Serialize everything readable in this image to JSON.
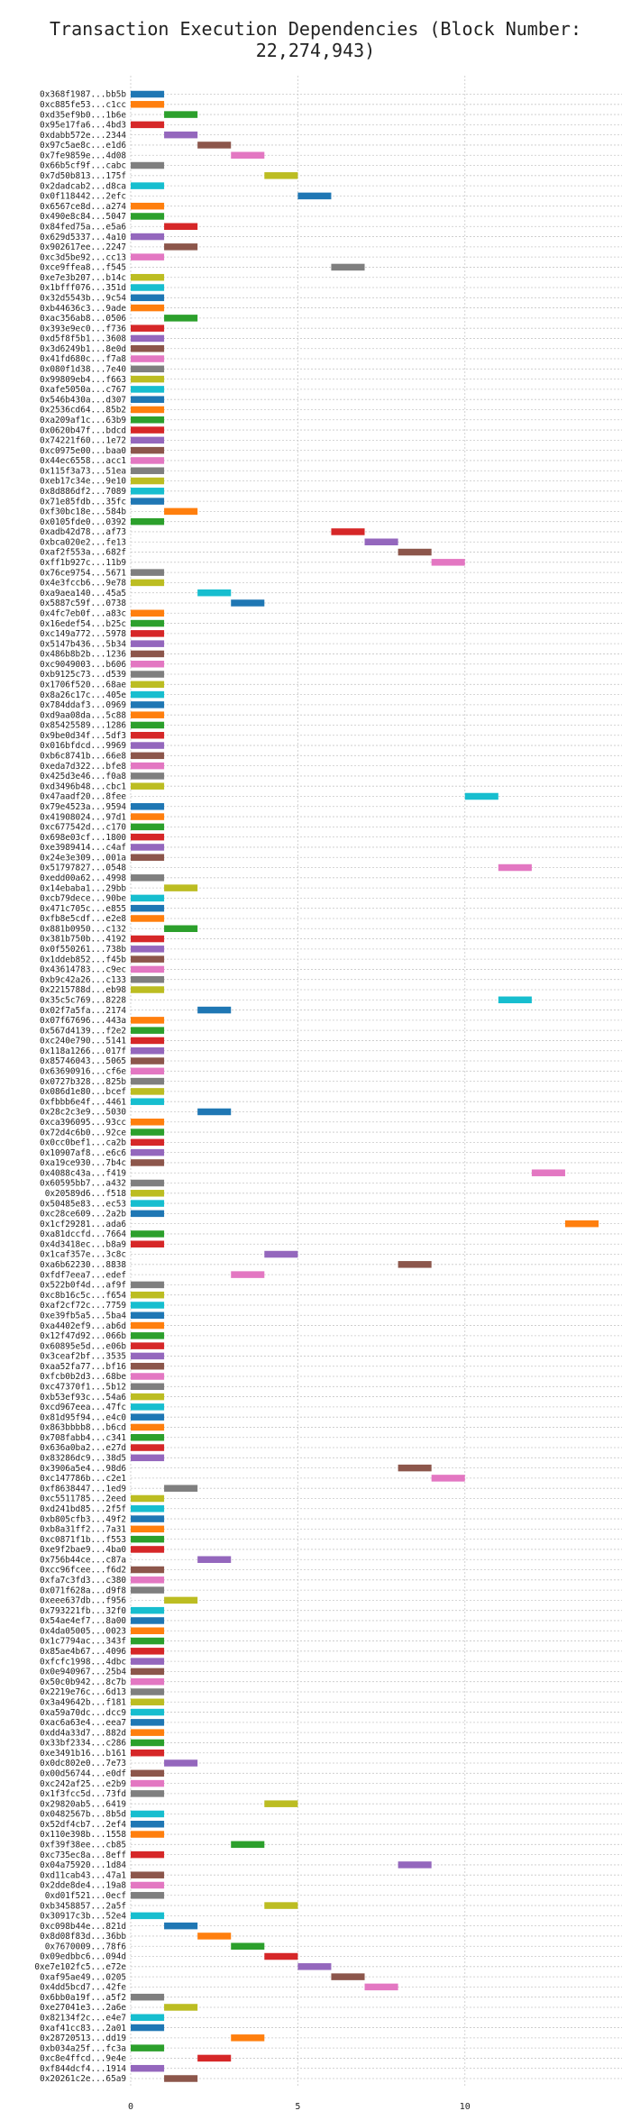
{
  "chart_data": {
    "type": "bar",
    "orientation": "horizontal",
    "title": "Transaction Execution Dependencies (Block Number: 22,274,943)",
    "xlabel": "",
    "ylabel": "",
    "xlim": [
      0,
      14.7
    ],
    "xticks": [
      0,
      5,
      10
    ],
    "grid": "dotted",
    "colors": [
      "#1f77b4",
      "#ff7f0e",
      "#2ca02c",
      "#d62728",
      "#9467bd",
      "#8c564b",
      "#e377c2",
      "#7f7f7f",
      "#bcbd22",
      "#17becf"
    ],
    "categories": [
      "0x368f1987...bb5b",
      "0xc885fe53...c1cc",
      "0xd35ef9b0...1b6e",
      "0x95e17fa6...4bd3",
      "0xdabb572e...2344",
      "0x97c5ae8c...e1d6",
      "0x7fe9859e...4d08",
      "0x66b5cf9f...cabc",
      "0x7d50b813...175f",
      "0x2dadcab2...d8ca",
      "0x0f118442...2efc",
      "0x6567ce8d...a274",
      "0x490e8c84...5047",
      "0x84fed75a...e5a6",
      "0x629d5337...4a10",
      "0x902617ee...2247",
      "0xc3d5be92...cc13",
      "0xce9ffea8...f545",
      "0xe7e3b207...b14c",
      "0x1bfff076...351d",
      "0x32d5543b...9c54",
      "0xb44636c3...9ade",
      "0xac356ab8...0506",
      "0x393e9ec0...f736",
      "0xd5f8f5b1...3608",
      "0x3d6249b1...8e0d",
      "0x41fd680c...f7a8",
      "0x080f1d38...7e40",
      "0x99809eb4...f663",
      "0xafe5050a...c767",
      "0x546b430a...d307",
      "0x2536cd64...85b2",
      "0xa209af1c...63b9",
      "0x0620b47f...bdcd",
      "0x74221f60...1e72",
      "0xc0975e00...baa0",
      "0x44ec6558...acc1",
      "0x115f3a73...51ea",
      "0xeb17c34e...9e10",
      "0x8d886df2...7089",
      "0x71e85fdb...35fc",
      "0xf30bc18e...584b",
      "0x0105fde0...0392",
      "0xadb42d78...af73",
      "0xbca020e2...fe13",
      "0xaf2f553a...682f",
      "0xff1b927c...11b9",
      "0x76ce9754...5671",
      "0x4e3fccb6...9e78",
      "0xa9aea140...45a5",
      "0x5887c59f...0738",
      "0x4fc7eb0f...a83c",
      "0x16edef54...b25c",
      "0xc149a772...5978",
      "0x5147b436...5b34",
      "0x486b8b2b...1236",
      "0xc9049003...b606",
      "0xb9125c73...d539",
      "0x1706f520...68ae",
      "0x8a26c17c...405e",
      "0x784ddaf3...0969",
      "0xd9aa08da...5c88",
      "0x85425589...1286",
      "0x9be0d34f...5df3",
      "0x016bfdcd...9969",
      "0xb6c8741b...66e8",
      "0xeda7d322...bfe8",
      "0x425d3e46...f0a8",
      "0xd3496b48...cbc1",
      "0x47aadf20...8fee",
      "0x79e4523a...9594",
      "0x41908024...97d1",
      "0xc677542d...c170",
      "0x698e03cf...1800",
      "0xe3989414...c4af",
      "0x24e3e309...001a",
      "0x51797827...0548",
      "0xedd00a62...4998",
      "0x14ebaba1...29bb",
      "0xcb79dece...90be",
      "0x471c705c...e855",
      "0xfb8e5cdf...e2e8",
      "0x881b0950...c132",
      "0x381b750b...4192",
      "0x0f550261...738b",
      "0x1ddeb852...f45b",
      "0x43614783...c9ec",
      "0xb9c42a26...c133",
      "0x2215788d...eb98",
      "0x35c5c769...8228",
      "0x02f7a5fa...2174",
      "0x07f67696...443a",
      "0x567d4139...f2e2",
      "0xc240e790...5141",
      "0x118a1266...017f",
      "0x85746043...5065",
      "0x63690916...cf6e",
      "0x0727b328...825b",
      "0x086d1e80...bcef",
      "0xfbbb6e4f...4461",
      "0x28c2c3e9...5030",
      "0xca396095...93cc",
      "0x72d4c6b0...92ce",
      "0x0cc0bef1...ca2b",
      "0x10907af8...e6c6",
      "0xa19ce930...7b4c",
      "0x4088c43a...f419",
      "0x60595bb7...a432",
      "0x20589d6...f518",
      "0x50485e83...ec53",
      "0xc28ce609...2a2b",
      "0x1cf29281...ada6",
      "0xa81dccfd...7664",
      "0x4d3418ec...b8a9",
      "0x1caf357e...3c8c",
      "0xa6b62230...8838",
      "0xfdf7eea7...edef",
      "0x522b0f4d...af9f",
      "0xc8b16c5c...f654",
      "0xaf2cf72c...7759",
      "0xe39fb5a5...5ba4",
      "0xa4402ef9...ab6d",
      "0x12f47d92...066b",
      "0x60895e5d...e06b",
      "0x3ceaf2bf...3535",
      "0xaa52fa77...bf16",
      "0xfcb0b2d3...68be",
      "0xc47370f1...5b12",
      "0xb53ef93c...54a6",
      "0xcd967eea...47fc",
      "0x81d95f94...e4c0",
      "0x863bbbb8...b6cd",
      "0x708fabb4...c341",
      "0x636a0ba2...e27d",
      "0x83286dc9...38d5",
      "0x3906a5e4...98d6",
      "0xc147786b...c2e1",
      "0xf8638447...1ed9",
      "0xc5511785...2eed",
      "0xd241bd85...2f5f",
      "0xb805cfb3...49f2",
      "0xb8a31ff2...7a31",
      "0xc0871f1b...f553",
      "0xe9f2bae9...4ba0",
      "0x756b44ce...c87a",
      "0xcc96fcee...f6d2",
      "0xfa7c3fd3...c380",
      "0x071f628a...d9f8",
      "0xeee637db...f956",
      "0x793221fb...32f0",
      "0x54ae4ef7...8a00",
      "0x4da05005...0023",
      "0x1c7794ac...343f",
      "0x85ae4b67...4096",
      "0xfcfc1998...4dbc",
      "0x0e940967...25b4",
      "0x50c0b942...8c7b",
      "0x2219e76c...6d13",
      "0x3a49642b...f181",
      "0xa59a70dc...dcc9",
      "0xac6a63e4...eea7",
      "0xdd4a33d7...882d",
      "0x33bf2334...c286",
      "0xe3491b16...b161",
      "0x0dc802e0...7e73",
      "0x00d56744...e0df",
      "0xc242af25...e2b9",
      "0x1f3fcc5d...73fd",
      "0x29820ab5...6419",
      "0x0482567b...8b5d",
      "0x52df4cb7...2ef4",
      "0x110e398b...1558",
      "0xf39f38ee...cb85",
      "0xc735ec8a...8eff",
      "0x04a75920...1d84",
      "0xd11cab43...47a1",
      "0x2dde8de4...19a8",
      "0xd01f521...0ecf",
      "0xb3458857...2a5f",
      "0x30917c3b...52e4",
      "0xc098b44e...821d",
      "0x8d08f83d...36bb",
      "0x7670009...78f6",
      "0x09edbbc6...094d",
      "0xe7e102fc5...e72e",
      "0xaf95ae49...0205",
      "0x4dd5bcd7...42fe",
      "0x6bb0a19f...a5f2",
      "0xe27041e3...2a6e",
      "0x82134f2c...e4e7",
      "0xaf41cc83...2a01",
      "0x28720513...dd19",
      "0xb034a25f...fc3a",
      "0xc8e4ffcd...9e4e",
      "0xf844dcf4...1914",
      "0x20261c2e...65a9"
    ],
    "bars": [
      [
        0,
        1,
        0
      ],
      [
        0,
        1,
        1
      ],
      [
        1,
        2,
        2
      ],
      [
        0,
        1,
        3
      ],
      [
        1,
        2,
        4
      ],
      [
        2,
        3,
        5
      ],
      [
        3,
        4,
        6
      ],
      [
        0,
        1,
        7
      ],
      [
        4,
        5,
        8
      ],
      [
        0,
        1,
        9
      ],
      [
        5,
        6,
        0
      ],
      [
        0,
        1,
        1
      ],
      [
        0,
        1,
        2
      ],
      [
        1,
        2,
        3
      ],
      [
        0,
        1,
        4
      ],
      [
        1,
        2,
        5
      ],
      [
        0,
        1,
        6
      ],
      [
        6,
        7,
        7
      ],
      [
        0,
        1,
        8
      ],
      [
        0,
        1,
        9
      ],
      [
        0,
        1,
        0
      ],
      [
        0,
        1,
        1
      ],
      [
        1,
        2,
        2
      ],
      [
        0,
        1,
        3
      ],
      [
        0,
        1,
        4
      ],
      [
        0,
        1,
        5
      ],
      [
        0,
        1,
        6
      ],
      [
        0,
        1,
        7
      ],
      [
        0,
        1,
        8
      ],
      [
        0,
        1,
        9
      ],
      [
        0,
        1,
        0
      ],
      [
        0,
        1,
        1
      ],
      [
        0,
        1,
        2
      ],
      [
        0,
        1,
        3
      ],
      [
        0,
        1,
        4
      ],
      [
        0,
        1,
        5
      ],
      [
        0,
        1,
        6
      ],
      [
        0,
        1,
        7
      ],
      [
        0,
        1,
        8
      ],
      [
        0,
        1,
        9
      ],
      [
        0,
        1,
        0
      ],
      [
        1,
        2,
        1
      ],
      [
        0,
        1,
        2
      ],
      [
        6,
        7,
        3
      ],
      [
        7,
        8,
        4
      ],
      [
        8,
        9,
        5
      ],
      [
        9,
        10,
        6
      ],
      [
        0,
        1,
        7
      ],
      [
        0,
        1,
        8
      ],
      [
        2,
        3,
        9
      ],
      [
        3,
        4,
        0
      ],
      [
        0,
        1,
        1
      ],
      [
        0,
        1,
        2
      ],
      [
        0,
        1,
        3
      ],
      [
        0,
        1,
        4
      ],
      [
        0,
        1,
        5
      ],
      [
        0,
        1,
        6
      ],
      [
        0,
        1,
        7
      ],
      [
        0,
        1,
        8
      ],
      [
        0,
        1,
        9
      ],
      [
        0,
        1,
        0
      ],
      [
        0,
        1,
        1
      ],
      [
        0,
        1,
        2
      ],
      [
        0,
        1,
        3
      ],
      [
        0,
        1,
        4
      ],
      [
        0,
        1,
        5
      ],
      [
        0,
        1,
        6
      ],
      [
        0,
        1,
        7
      ],
      [
        0,
        1,
        8
      ],
      [
        10,
        11,
        9
      ],
      [
        0,
        1,
        0
      ],
      [
        0,
        1,
        1
      ],
      [
        0,
        1,
        2
      ],
      [
        0,
        1,
        3
      ],
      [
        0,
        1,
        4
      ],
      [
        0,
        1,
        5
      ],
      [
        11,
        12,
        6
      ],
      [
        0,
        1,
        7
      ],
      [
        1,
        2,
        8
      ],
      [
        0,
        1,
        9
      ],
      [
        0,
        1,
        0
      ],
      [
        0,
        1,
        1
      ],
      [
        1,
        2,
        2
      ],
      [
        0,
        1,
        3
      ],
      [
        0,
        1,
        4
      ],
      [
        0,
        1,
        5
      ],
      [
        0,
        1,
        6
      ],
      [
        0,
        1,
        7
      ],
      [
        0,
        1,
        8
      ],
      [
        11,
        12,
        9
      ],
      [
        2,
        3,
        0
      ],
      [
        0,
        1,
        1
      ],
      [
        0,
        1,
        2
      ],
      [
        0,
        1,
        3
      ],
      [
        0,
        1,
        4
      ],
      [
        0,
        1,
        5
      ],
      [
        0,
        1,
        6
      ],
      [
        0,
        1,
        7
      ],
      [
        0,
        1,
        8
      ],
      [
        0,
        1,
        9
      ],
      [
        2,
        3,
        0
      ],
      [
        0,
        1,
        1
      ],
      [
        0,
        1,
        2
      ],
      [
        0,
        1,
        3
      ],
      [
        0,
        1,
        4
      ],
      [
        0,
        1,
        5
      ],
      [
        12,
        13,
        6
      ],
      [
        0,
        1,
        7
      ],
      [
        0,
        1,
        8
      ],
      [
        0,
        1,
        9
      ],
      [
        0,
        1,
        0
      ],
      [
        13,
        14,
        1
      ],
      [
        0,
        1,
        2
      ],
      [
        0,
        1,
        3
      ],
      [
        4,
        5,
        4
      ],
      [
        8,
        9,
        5
      ],
      [
        3,
        4,
        6
      ],
      [
        0,
        1,
        7
      ],
      [
        0,
        1,
        8
      ],
      [
        0,
        1,
        9
      ],
      [
        0,
        1,
        0
      ],
      [
        0,
        1,
        1
      ],
      [
        0,
        1,
        2
      ],
      [
        0,
        1,
        3
      ],
      [
        0,
        1,
        4
      ],
      [
        0,
        1,
        5
      ],
      [
        0,
        1,
        6
      ],
      [
        0,
        1,
        7
      ],
      [
        0,
        1,
        8
      ],
      [
        0,
        1,
        9
      ],
      [
        0,
        1,
        0
      ],
      [
        0,
        1,
        1
      ],
      [
        0,
        1,
        2
      ],
      [
        0,
        1,
        3
      ],
      [
        0,
        1,
        4
      ],
      [
        8,
        9,
        5
      ],
      [
        9,
        10,
        6
      ],
      [
        1,
        2,
        7
      ],
      [
        0,
        1,
        8
      ],
      [
        0,
        1,
        9
      ],
      [
        0,
        1,
        0
      ],
      [
        0,
        1,
        1
      ],
      [
        0,
        1,
        2
      ],
      [
        0,
        1,
        3
      ],
      [
        2,
        3,
        4
      ],
      [
        0,
        1,
        5
      ],
      [
        0,
        1,
        6
      ],
      [
        0,
        1,
        7
      ],
      [
        1,
        2,
        8
      ],
      [
        0,
        1,
        9
      ],
      [
        0,
        1,
        0
      ],
      [
        0,
        1,
        1
      ],
      [
        0,
        1,
        2
      ],
      [
        0,
        1,
        3
      ],
      [
        0,
        1,
        4
      ],
      [
        0,
        1,
        5
      ],
      [
        0,
        1,
        6
      ],
      [
        0,
        1,
        7
      ],
      [
        0,
        1,
        8
      ],
      [
        0,
        1,
        9
      ],
      [
        0,
        1,
        0
      ],
      [
        0,
        1,
        1
      ],
      [
        0,
        1,
        2
      ],
      [
        0,
        1,
        3
      ],
      [
        1,
        2,
        4
      ],
      [
        0,
        1,
        5
      ],
      [
        0,
        1,
        6
      ],
      [
        0,
        1,
        7
      ],
      [
        4,
        5,
        8
      ],
      [
        0,
        1,
        9
      ],
      [
        0,
        1,
        0
      ],
      [
        0,
        1,
        1
      ],
      [
        3,
        4,
        2
      ],
      [
        0,
        1,
        3
      ],
      [
        8,
        9,
        4
      ],
      [
        0,
        1,
        5
      ],
      [
        0,
        1,
        6
      ],
      [
        0,
        1,
        7
      ],
      [
        4,
        5,
        8
      ],
      [
        0,
        1,
        9
      ],
      [
        1,
        2,
        0
      ],
      [
        2,
        3,
        1
      ],
      [
        3,
        4,
        2
      ],
      [
        4,
        5,
        3
      ],
      [
        5,
        6,
        4
      ],
      [
        6,
        7,
        5
      ],
      [
        7,
        8,
        6
      ],
      [
        0,
        1,
        7
      ],
      [
        1,
        2,
        8
      ],
      [
        0,
        1,
        9
      ],
      [
        0,
        1,
        0
      ],
      [
        3,
        4,
        1
      ],
      [
        0,
        1,
        2
      ],
      [
        2,
        3,
        3
      ],
      [
        0,
        1,
        4
      ],
      [
        1,
        2,
        5
      ]
    ]
  }
}
